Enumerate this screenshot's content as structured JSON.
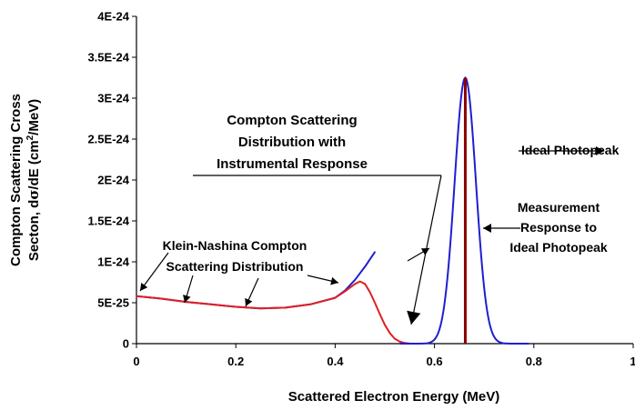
{
  "chart_data": {
    "type": "line",
    "xlabel": "Scattered Electron Energy (MeV)",
    "ylabel_line1": "Compton Scattering Cross",
    "ylabel_line2_parts": [
      "Secton, d",
      "σ",
      "/dE (cm",
      "2",
      "/MeV)"
    ],
    "xlim": [
      0,
      1
    ],
    "ylim": [
      0,
      4e-24
    ],
    "x_ticks": [
      0,
      0.2,
      0.4,
      0.6,
      0.8,
      1
    ],
    "x_tick_labels": [
      "0",
      "0.2",
      "0.4",
      "0.6",
      "0.8",
      "1"
    ],
    "y_ticks": [
      0,
      5e-25,
      1e-24,
      1.5e-24,
      2e-24,
      2.5e-24,
      3e-24,
      3.5e-24,
      4e-24
    ],
    "y_tick_labels": [
      "0",
      "5E-25",
      "1E-24",
      "1.5E-24",
      "2E-24",
      "2.5E-24",
      "3E-24",
      "3.5E-24",
      "4E-24"
    ],
    "grid": false,
    "series": [
      {
        "color": "#1f1fd0",
        "x": [
          0,
          0.05,
          0.1,
          0.15,
          0.2,
          0.25,
          0.3,
          0.35,
          0.4,
          0.42,
          0.44,
          0.46,
          0.48
        ],
        "y": [
          5.8e-25,
          5.5e-25,
          5.1e-25,
          4.8e-25,
          4.5e-25,
          4.3e-25,
          4.4e-25,
          4.8e-25,
          5.6e-25,
          6.5e-25,
          7.8e-25,
          9.4e-25,
          1.12e-24
        ]
      },
      {
        "color": "#e02020",
        "x": [
          0,
          0.05,
          0.1,
          0.15,
          0.2,
          0.25,
          0.3,
          0.35,
          0.4,
          0.42,
          0.44,
          0.45,
          0.46,
          0.47,
          0.48,
          0.49,
          0.5,
          0.51,
          0.52,
          0.53,
          0.54,
          0.55,
          0.56
        ],
        "y": [
          5.8e-25,
          5.5e-25,
          5.1e-25,
          4.8e-25,
          4.5e-25,
          4.3e-25,
          4.4e-25,
          4.8e-25,
          5.6e-25,
          6.4e-25,
          7.3e-25,
          7.6e-25,
          7.3e-25,
          6.3e-25,
          5e-25,
          3.6e-25,
          2.3e-25,
          1.3e-25,
          6e-26,
          2.5e-26,
          8e-27,
          2e-27,
          0
        ]
      },
      {
        "color": "#1f1fd0",
        "gaussian": {
          "center": 0.662,
          "amplitude": 3.25e-24,
          "sigma": 0.0215,
          "x_range": [
            0.53,
            0.79
          ]
        }
      },
      {
        "color": "#8b0000",
        "vertical_line": {
          "x": 0.662,
          "y": 3.25e-24
        }
      }
    ],
    "annotations": [
      {
        "lines": [
          "Compton Scattering",
          "Distribution with",
          "Instrumental Response"
        ]
      },
      {
        "lines": [
          "Ideal Photopeak"
        ]
      },
      {
        "lines": [
          "Measurement",
          "Response to",
          "Ideal Photopeak"
        ]
      },
      {
        "lines": [
          "Klein-Nashina Compton",
          "Scattering Distribution"
        ]
      }
    ]
  }
}
